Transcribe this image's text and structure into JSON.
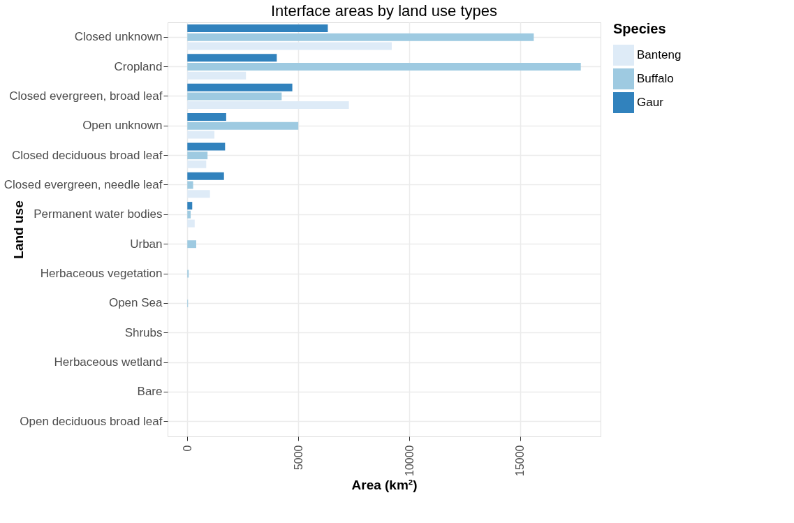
{
  "chart_data": {
    "type": "bar",
    "orientation": "horizontal",
    "title": "Interface areas by land use types",
    "xlabel": "Area (km²)",
    "ylabel": "Land use",
    "legend_title": "Species",
    "categories": [
      "Closed unknown",
      "Cropland",
      "Closed evergreen, broad leaf",
      "Open unknown",
      "Closed deciduous broad leaf",
      "Closed evergreen, needle leaf",
      "Permanent water bodies",
      "Urban",
      "Herbaceous vegetation",
      "Open Sea",
      "Shrubs",
      "Herbaceous wetland",
      "Bare",
      "Open deciduous  broad leaf"
    ],
    "series": [
      {
        "name": "Banteng",
        "color": "#deebf7",
        "values": [
          9210,
          2640,
          7280,
          1220,
          850,
          1020,
          330,
          0,
          0,
          0,
          0,
          0,
          0,
          0
        ]
      },
      {
        "name": "Buffalo",
        "color": "#9ecae1",
        "values": [
          15610,
          17730,
          4250,
          5000,
          910,
          260,
          150,
          400,
          60,
          30,
          0,
          0,
          0,
          0
        ]
      },
      {
        "name": "Gaur",
        "color": "#3182bd",
        "values": [
          6330,
          4030,
          4730,
          1750,
          1700,
          1650,
          220,
          0,
          0,
          0,
          0,
          0,
          0,
          0
        ]
      }
    ],
    "xlim": [
      -890,
      18620
    ],
    "xticks": [
      0,
      5000,
      10000,
      15000
    ],
    "grid": true,
    "legend": "right"
  }
}
